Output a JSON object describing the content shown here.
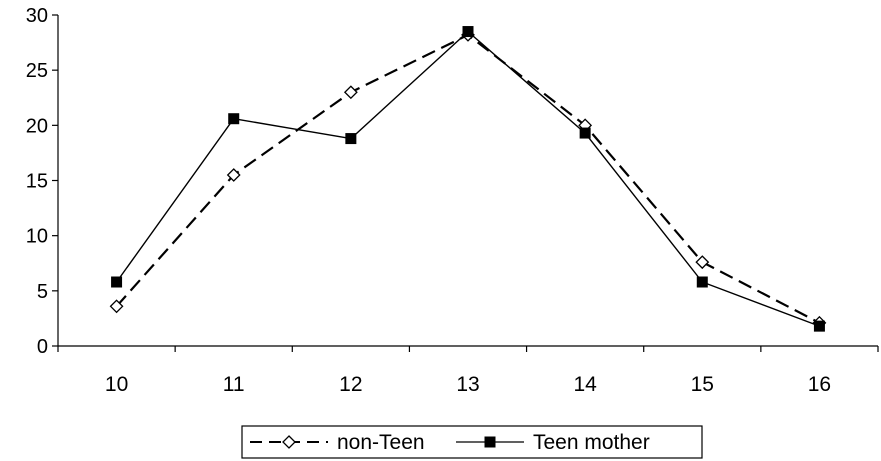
{
  "chart_data": {
    "type": "line",
    "x": [
      10,
      11,
      12,
      13,
      14,
      15,
      16
    ],
    "xlim": [
      9.5,
      16.5
    ],
    "ylim": [
      0,
      30
    ],
    "yticks": [
      0,
      5,
      10,
      15,
      20,
      25,
      30
    ],
    "xtick_labels": [
      "10",
      "11",
      "12",
      "13",
      "14",
      "15",
      "16"
    ],
    "ytick_labels": [
      "0",
      "5",
      "10",
      "15",
      "20",
      "25",
      "30"
    ],
    "grid": false,
    "legend_position": "bottom-center",
    "series": [
      {
        "name": "non-Teen",
        "values": [
          3.6,
          15.5,
          23.0,
          28.2,
          20.0,
          7.6,
          2.1
        ],
        "line_style": "dashed",
        "marker": "open-diamond",
        "color": "#000000"
      },
      {
        "name": "Teen mother",
        "values": [
          5.8,
          20.6,
          18.8,
          28.5,
          19.3,
          5.8,
          1.8
        ],
        "line_style": "solid",
        "marker": "filled-square",
        "color": "#000000"
      }
    ]
  }
}
